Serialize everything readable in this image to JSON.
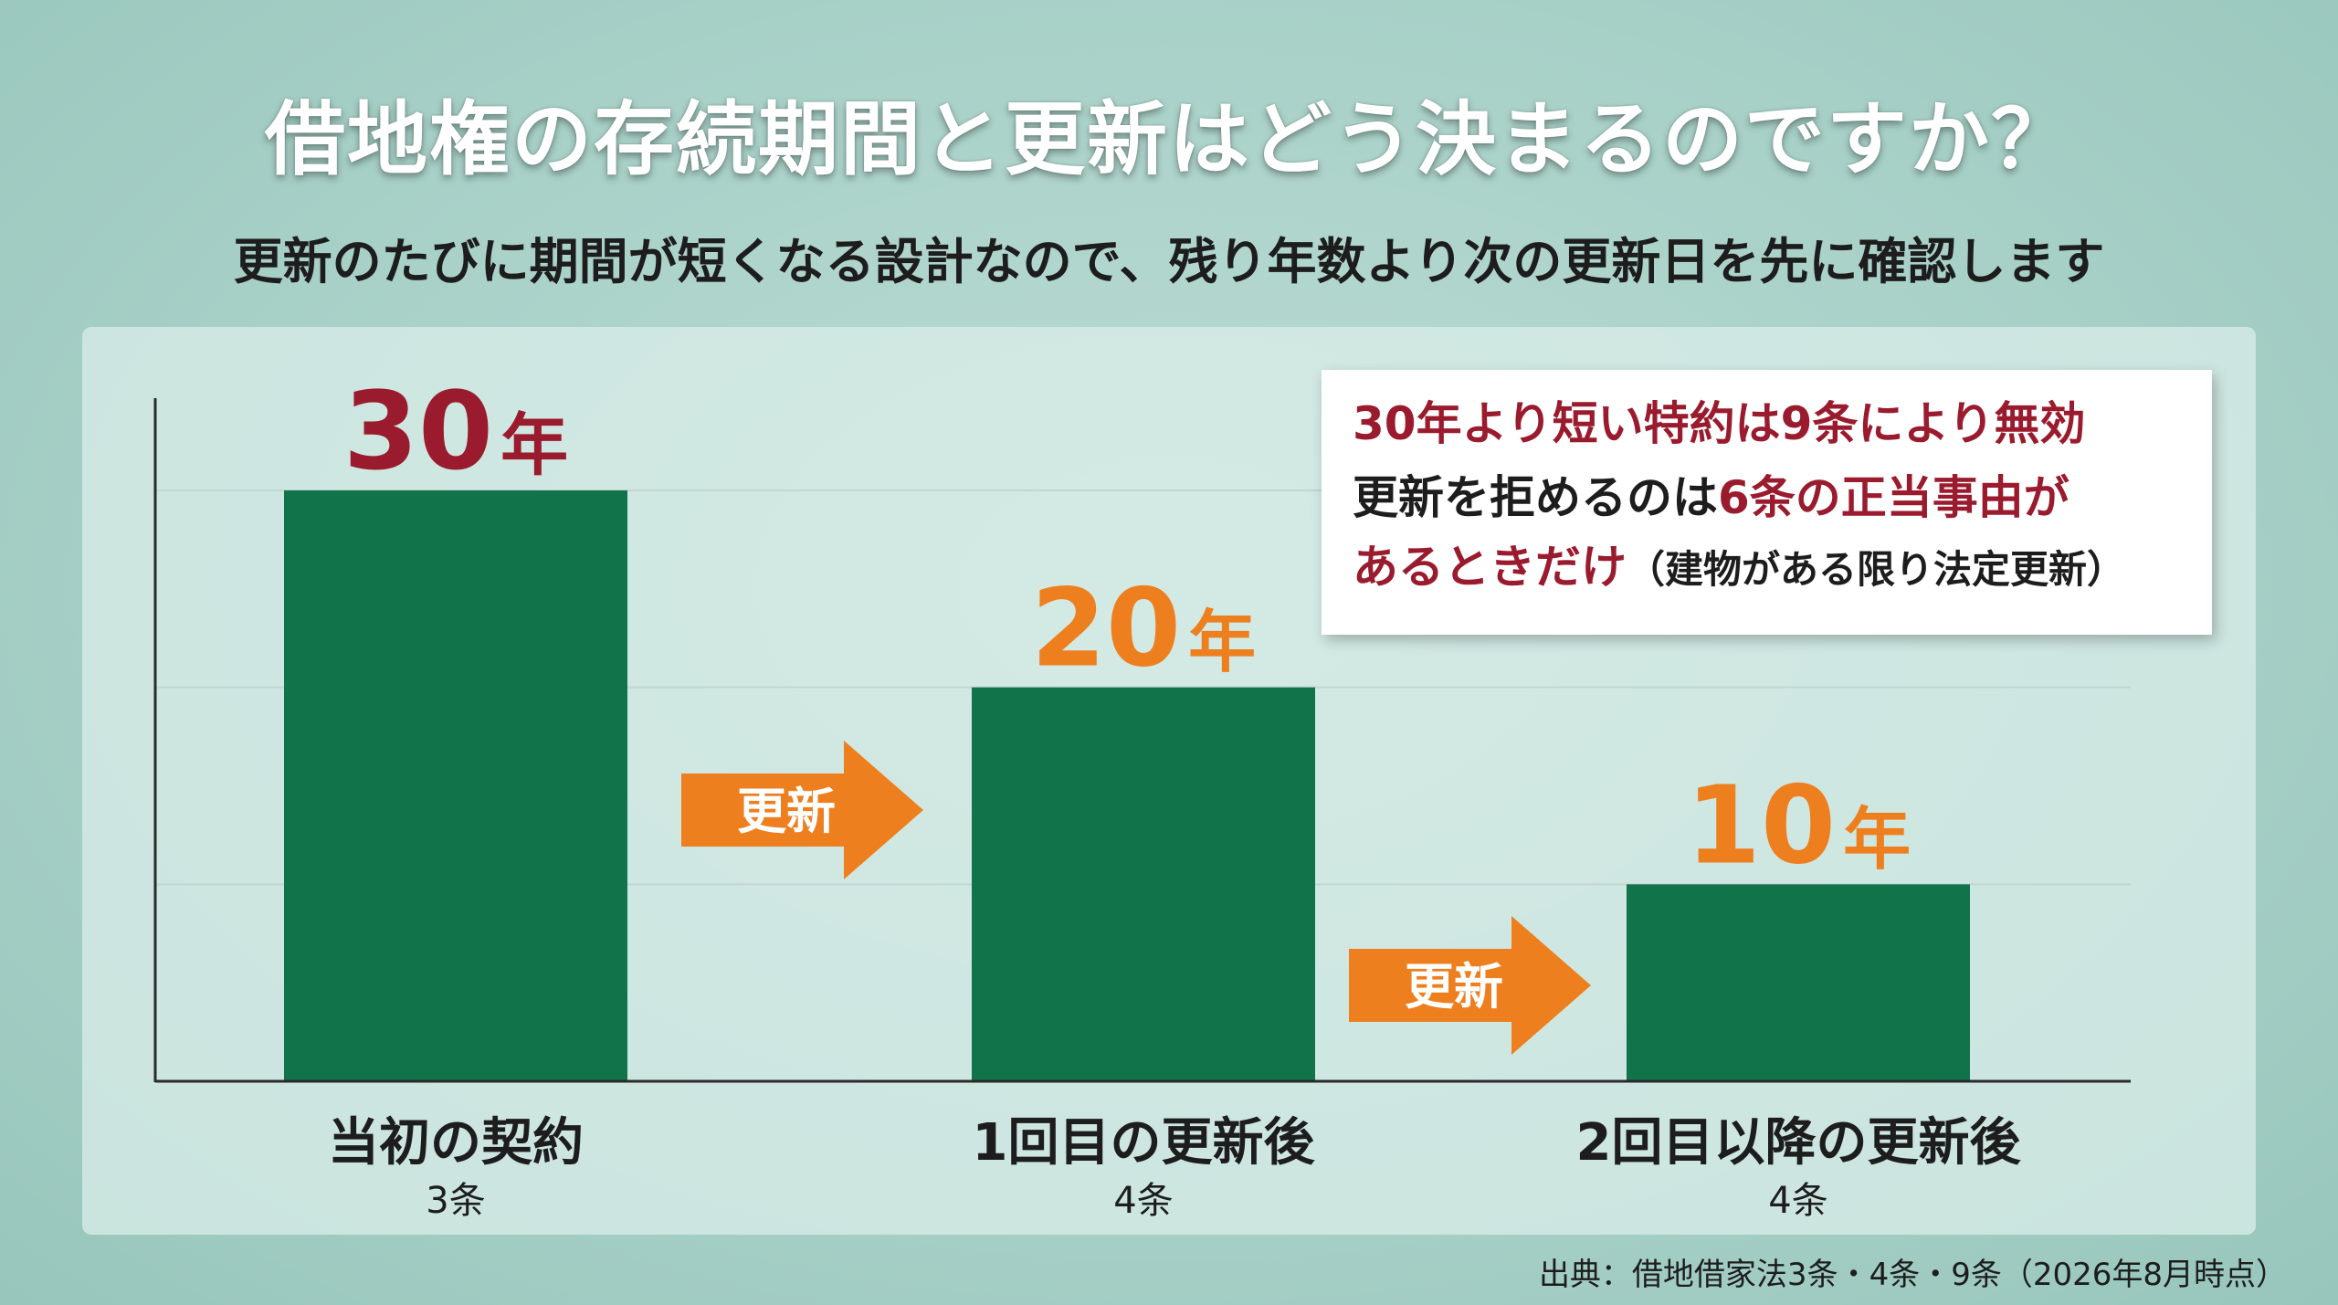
{
  "title": "借地権の存続期間と更新はどう決まるのですか？",
  "subtitle": "更新のたびに期間が短くなる設計なので、残り年数より次の更新日を先に確認します",
  "chart_data": {
    "type": "bar",
    "categories": [
      "当初の契約",
      "1回目の更新後",
      "2回目以降の更新後"
    ],
    "category_subs": [
      "3条",
      "4条",
      "4条"
    ],
    "values": [
      30,
      20,
      10
    ],
    "value_labels": [
      {
        "num": "30",
        "unit": "年"
      },
      {
        "num": "20",
        "unit": "年"
      },
      {
        "num": "10",
        "unit": "年"
      }
    ],
    "label_colors": [
      "#9b1b2e",
      "#ee7f1f",
      "#ee7f1f"
    ],
    "bar_color": "#11734a",
    "arrow_color": "#ee7f1f",
    "ylim": [
      0,
      30
    ],
    "grid": true,
    "arrows": [
      "更新",
      "更新"
    ]
  },
  "callout": {
    "line1": "30年より短い特約は9条により無効",
    "line2_a": "更新を拒めるのは",
    "line2_b": "6条の正当事由が",
    "line3_a": "あるときだけ",
    "line3_b": "（建物がある限り法定更新）"
  },
  "source": "出典：借地借家法3条・4条・9条（2026年8月時点）"
}
